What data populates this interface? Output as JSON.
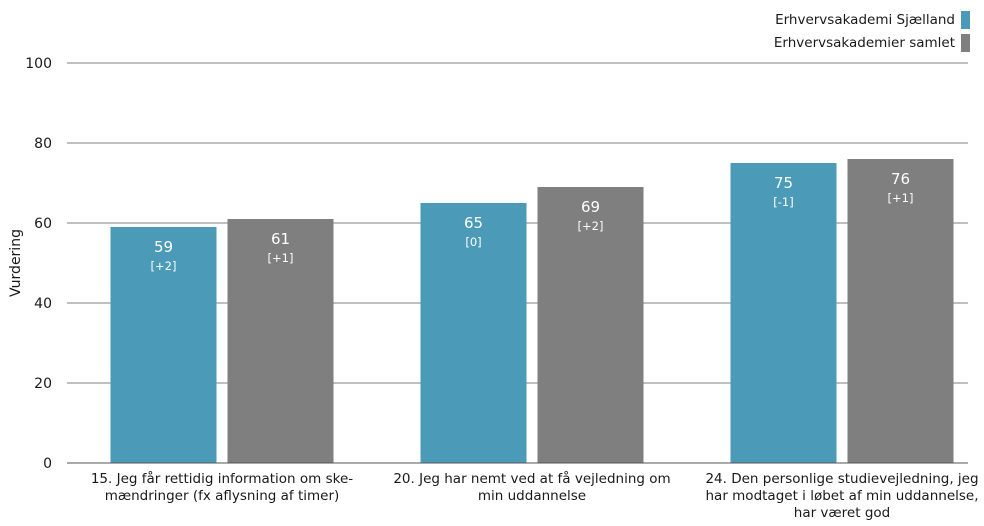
{
  "chart_data": {
    "type": "bar",
    "title": "",
    "xlabel": "",
    "ylabel": "Vurdering",
    "ylim": [
      0,
      100
    ],
    "yticks": [
      0,
      20,
      40,
      60,
      80,
      100
    ],
    "grid": true,
    "legend_position": "top-right",
    "categories": [
      [
        "15. Jeg får rettidig information om ske-",
        "mændringer (fx aflysning af timer)"
      ],
      [
        "20. Jeg har nemt ved at få vejledning om",
        "min uddannelse"
      ],
      [
        "24. Den personlige studievejledning, jeg",
        "har modtaget i løbet af min uddannelse,",
        "har været god"
      ]
    ],
    "series": [
      {
        "name": "Erhvervsakademi Sjælland",
        "color": "#4a9ab8",
        "values": [
          59,
          65,
          75
        ],
        "changes": [
          "[+2]",
          "[0]",
          "[-1]"
        ]
      },
      {
        "name": "Erhvervsakademier samlet",
        "color": "#7f7f7f",
        "values": [
          61,
          69,
          76
        ],
        "changes": [
          "[+1]",
          "[+2]",
          "[+1]"
        ]
      }
    ]
  }
}
